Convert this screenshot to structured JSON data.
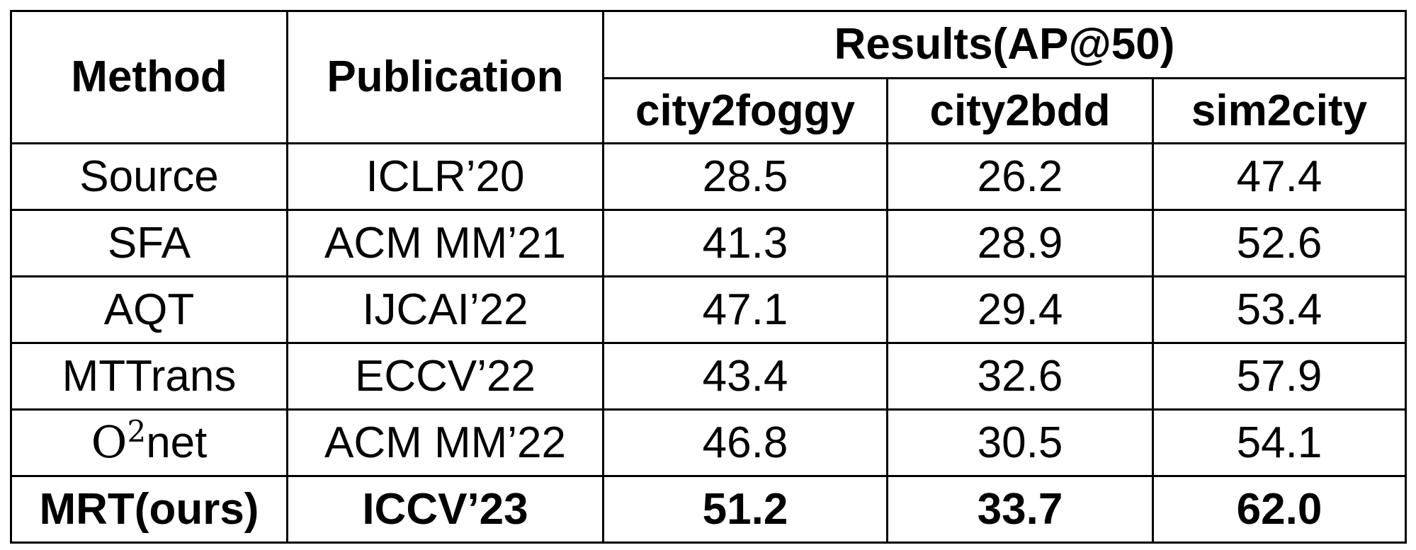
{
  "headers": {
    "method": "Method",
    "publication": "Publication",
    "results": "Results(AP@50)",
    "columns": [
      "city2foggy",
      "city2bdd",
      "sim2city"
    ]
  },
  "rows": [
    {
      "method": "Source",
      "publication": "ICLR’20",
      "city2foggy": "28.5",
      "city2bdd": "26.2",
      "sim2city": "47.4",
      "bold": false
    },
    {
      "method": "SFA",
      "publication": "ACM MM’21",
      "city2foggy": "41.3",
      "city2bdd": "28.9",
      "sim2city": "52.6",
      "bold": false
    },
    {
      "method": "AQT",
      "publication": "IJCAI’22",
      "city2foggy": "47.1",
      "city2bdd": "29.4",
      "sim2city": "53.4",
      "bold": false
    },
    {
      "method": "MTTrans",
      "publication": "ECCV’22",
      "city2foggy": "43.4",
      "city2bdd": "32.6",
      "sim2city": "57.9",
      "bold": false
    },
    {
      "method_base": "O",
      "method_sup": "2",
      "method_rest": "net",
      "publication": "ACM MM’22",
      "city2foggy": "46.8",
      "city2bdd": "30.5",
      "sim2city": "54.1",
      "bold": false
    },
    {
      "method": "MRT(ours)",
      "publication": "ICCV’23",
      "city2foggy": "51.2",
      "city2bdd": "33.7",
      "sim2city": "62.0",
      "bold": true
    }
  ]
}
